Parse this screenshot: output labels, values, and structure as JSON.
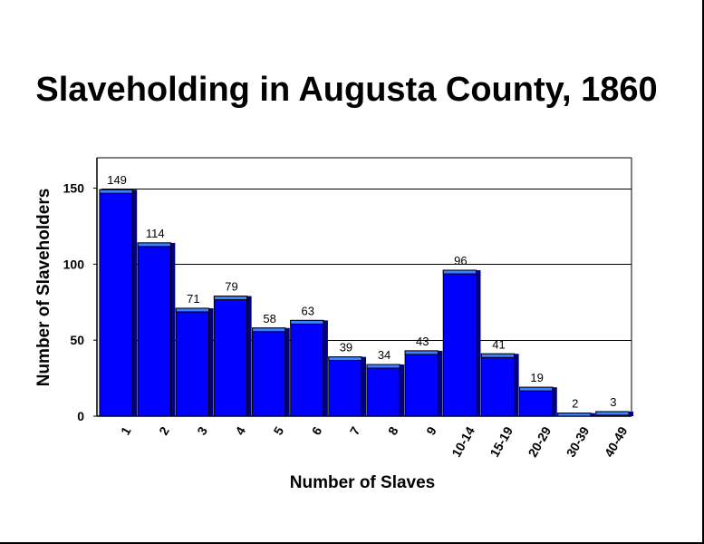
{
  "chart_data": {
    "type": "bar",
    "title": "Slaveholding in Augusta County, 1860",
    "xlabel": "Number of Slaves",
    "ylabel": "Number of Slaveholders",
    "categories": [
      "1",
      "2",
      "3",
      "4",
      "5",
      "6",
      "7",
      "8",
      "9",
      "10-14",
      "15-19",
      "20-29",
      "30-39",
      "40-49"
    ],
    "values": [
      149,
      114,
      71,
      79,
      58,
      63,
      39,
      34,
      43,
      96,
      41,
      19,
      2,
      3
    ],
    "ylim": [
      0,
      170
    ],
    "yticks": [
      0,
      50,
      100,
      150
    ],
    "gridlines": [
      50,
      100,
      150
    ],
    "grid": true,
    "legend": "none",
    "bar_color": "#0000ff",
    "bar_top_color": "#3d7fff",
    "bar_shadow_color": "#000080"
  }
}
